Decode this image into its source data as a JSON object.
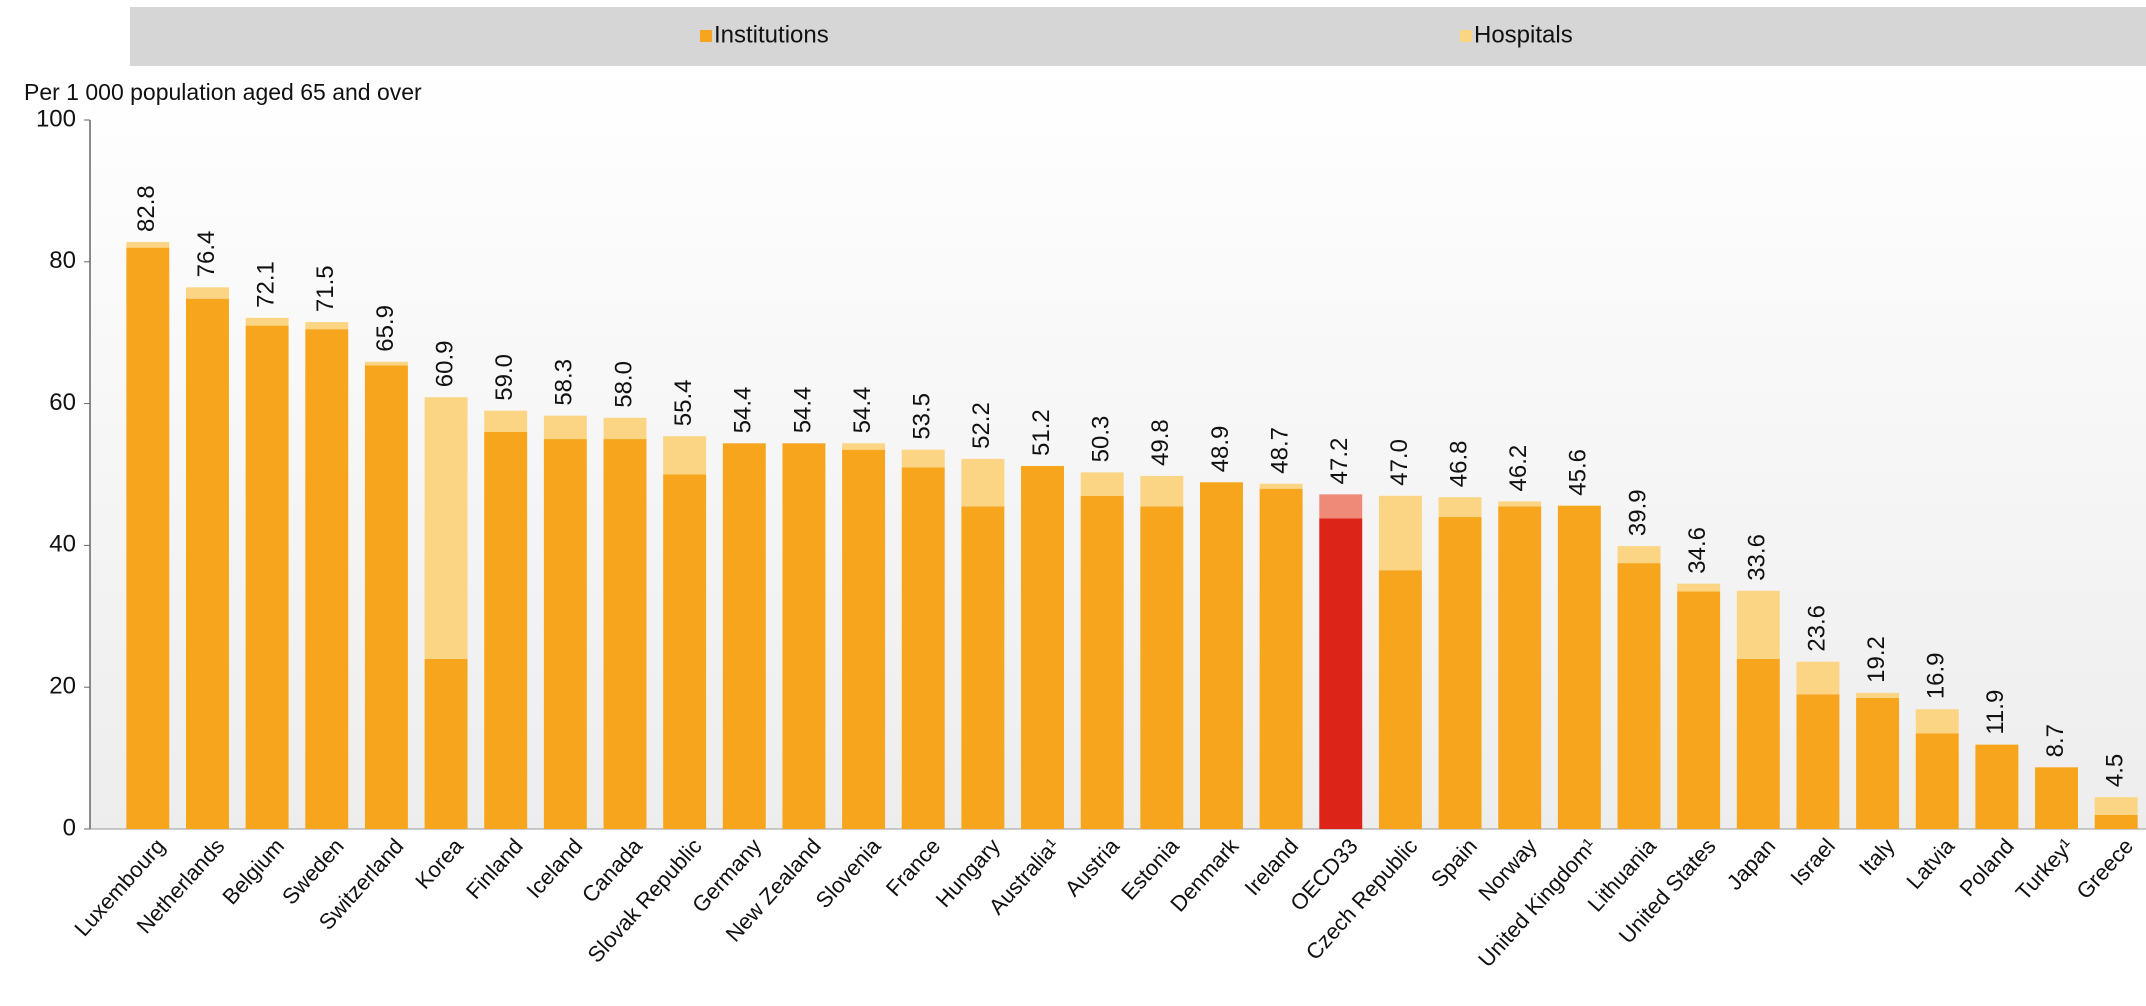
{
  "chart_data": {
    "type": "stacked_bar",
    "y_label": "Per 1 000 population aged 65 and over",
    "categories": [
      "Luxembourg",
      "Netherlands",
      "Belgium",
      "Sweden",
      "Switzerland",
      "Korea",
      "Finland",
      "Iceland",
      "Canada",
      "Slovak Republic",
      "Germany",
      "New Zealand",
      "Slovenia",
      "France",
      "Hungary",
      "Australia¹",
      "Austria",
      "Estonia",
      "Denmark",
      "Ireland",
      "OECD33",
      "Czech Republic",
      "Spain",
      "Norway",
      "United Kingdom¹",
      "Lithuania",
      "United States",
      "Japan",
      "Israel",
      "Italy",
      "Latvia",
      "Poland",
      "Turkey¹",
      "Greece"
    ],
    "series": [
      {
        "name": "Institutions",
        "color": "#f7a51c",
        "highlight_color": "#dc2418",
        "values": [
          82.0,
          74.8,
          71.0,
          70.5,
          65.4,
          24.0,
          56.0,
          55.0,
          55.0,
          50.0,
          54.4,
          54.4,
          53.5,
          51.0,
          45.5,
          51.2,
          47.0,
          45.5,
          48.9,
          48.0,
          43.8,
          36.5,
          44.0,
          45.5,
          45.6,
          37.5,
          33.5,
          24.0,
          19.0,
          18.5,
          13.5,
          11.9,
          8.7,
          2.0
        ]
      },
      {
        "name": "Hospitals",
        "color": "#fcd584",
        "highlight_color": "#f08a78",
        "values": [
          0.8,
          1.6,
          1.1,
          1.0,
          0.5,
          36.9,
          3.0,
          3.3,
          3.0,
          5.4,
          0,
          0,
          0.9,
          2.5,
          6.7,
          0,
          3.3,
          4.3,
          0,
          0.7,
          3.4,
          10.5,
          2.8,
          0.7,
          0,
          2.4,
          1.1,
          9.6,
          4.6,
          0.7,
          3.4,
          0,
          0,
          2.5
        ]
      }
    ],
    "totals": [
      82.8,
      76.4,
      72.1,
      71.5,
      65.9,
      60.9,
      59.0,
      58.3,
      58.0,
      55.4,
      54.4,
      54.4,
      54.4,
      53.5,
      52.2,
      51.2,
      50.3,
      49.8,
      48.9,
      48.7,
      47.2,
      47.0,
      46.8,
      46.2,
      45.6,
      39.9,
      34.6,
      33.6,
      23.6,
      19.2,
      16.9,
      11.9,
      8.7,
      4.5
    ],
    "value_labels": [
      "82.8",
      "76.4",
      "72.1",
      "71.5",
      "65.9",
      "60.9",
      "59.0",
      "58.3",
      "58.0",
      "55.4",
      "54.4",
      "54.4",
      "54.4",
      "53.5",
      "52.2",
      "51.2",
      "50.3",
      "49.8",
      "48.9",
      "48.7",
      "47.2",
      "47.0",
      "46.8",
      "46.2",
      "45.6",
      "39.9",
      "34.6",
      "33.6",
      "23.6",
      "19.2",
      "16.9",
      "11.9",
      "8.7",
      "4.5"
    ],
    "highlight": "OECD33",
    "ylim": [
      0,
      100
    ],
    "yticks": [
      0,
      20,
      40,
      60,
      80,
      100
    ],
    "grid": false,
    "legend": "top"
  }
}
